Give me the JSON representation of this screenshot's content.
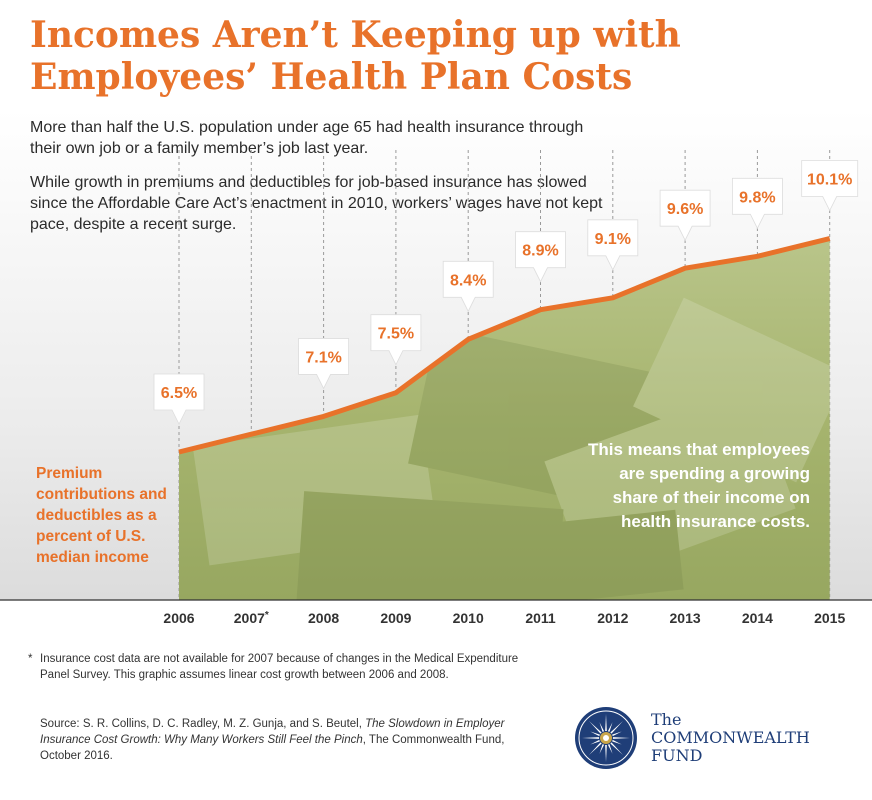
{
  "title": "Incomes Aren’t Keeping up with Employees’ Health Plan Costs",
  "intro": {
    "p1": "More than half the U.S. population under age 65 had health insurance through their own job or a family member’s job last year.",
    "p2": "While growth in premiums and deductibles for job-based insurance has slowed since the Affordable Care Act’s enactment in 2010, workers’ wages have not kept pace, despite a recent surge."
  },
  "chart_data": {
    "type": "area",
    "x": [
      "2006",
      "2007*",
      "2008",
      "2009",
      "2010",
      "2011",
      "2012",
      "2013",
      "2014",
      "2015"
    ],
    "values": [
      6.5,
      6.8,
      7.1,
      7.5,
      8.4,
      8.9,
      9.1,
      9.6,
      9.8,
      10.1
    ],
    "callouts": [
      {
        "year": "2006",
        "label": "6.5%"
      },
      {
        "year": "2008",
        "label": "7.1%"
      },
      {
        "year": "2009",
        "label": "7.5%"
      },
      {
        "year": "2010",
        "label": "8.4%"
      },
      {
        "year": "2011",
        "label": "8.9%"
      },
      {
        "year": "2012",
        "label": "9.1%"
      },
      {
        "year": "2013",
        "label": "9.6%"
      },
      {
        "year": "2014",
        "label": "9.8%"
      },
      {
        "year": "2015",
        "label": "10.1%"
      }
    ],
    "series_label": "Premium contributions and deductibles as a percent of U.S. median income",
    "ylabel": "",
    "colors": {
      "line": "#e8722a",
      "area": "#a8b870",
      "label_text": "#e8722a"
    }
  },
  "annotation": "This means that employees are spending a growing share of their income on health insurance costs.",
  "footnote": {
    "marker": "*",
    "text": "Insurance cost data are not available for 2007 because of changes in the Medical Expenditure Panel Survey. This graphic assumes linear cost growth between 2006 and 2008."
  },
  "source": {
    "prefix": "Source: S. R. Collins, D. C. Radley, M. Z. Gunja, and S. Beutel, ",
    "title": "The Slowdown in Employer Insurance Cost Growth: Why Many Workers Still Feel the Pinch",
    "suffix": ", The Commonwealth Fund, October 2016."
  },
  "logo": {
    "line1": "The",
    "line2": "COMMONWEALTH",
    "line3": "FUND",
    "color": "#1f3e78"
  }
}
